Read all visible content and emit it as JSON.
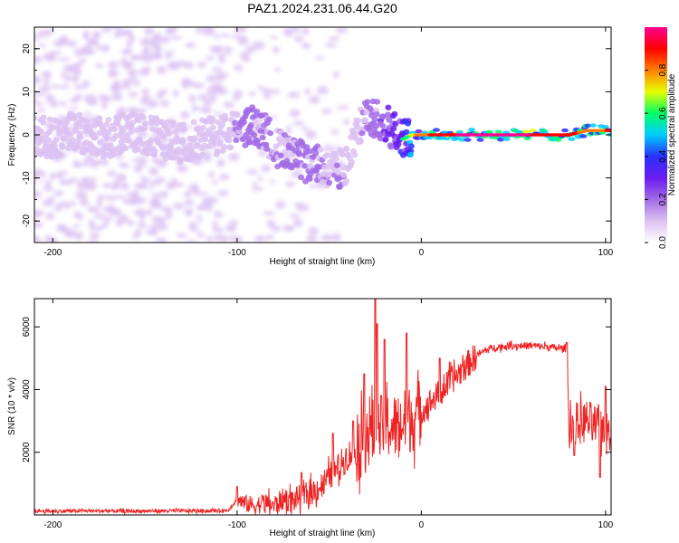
{
  "title": "PAZ1.2024.231.06.44.G20",
  "chart_data": [
    {
      "type": "heatmap",
      "xlabel": "Height of straight line (km)",
      "ylabel": "Frequency (Hz)",
      "xlim": [
        -210,
        103
      ],
      "ylim": [
        -25,
        25
      ],
      "xticks": [
        -200,
        -100,
        0,
        100
      ],
      "yticks": [
        -20,
        -10,
        0,
        10,
        20
      ],
      "colorbar": {
        "label": "Normalized spectral amplitude",
        "range": [
          0,
          1
        ],
        "ticks": [
          "0.0",
          "0.2",
          "0.4",
          "0.6",
          "0.8"
        ],
        "colors": [
          "#ffffff",
          "#dcc2f2",
          "#a26be6",
          "#6a1cf0",
          "#2a30ff",
          "#00ccff",
          "#00ff66",
          "#e5ff00",
          "#ff7f00",
          "#ff0000",
          "#ff0090"
        ]
      },
      "ridge": {
        "x": [
          -210,
          -200,
          -190,
          -180,
          -170,
          -160,
          -150,
          -140,
          -130,
          -120,
          -110,
          -100,
          -95,
          -90,
          -85,
          -80,
          -75,
          -70,
          -65,
          -60,
          -55,
          -50,
          -45,
          -40,
          -37,
          -35,
          -30,
          -28,
          -25,
          -20,
          -15,
          -10,
          -5,
          0,
          5,
          10,
          20,
          40,
          60,
          80,
          90,
          100,
          103
        ],
        "freq": [
          0,
          -1,
          1,
          0,
          -1,
          1,
          0,
          -1,
          -2,
          -1,
          0,
          1,
          2,
          2,
          1,
          -2,
          -4,
          -5,
          -6,
          -7,
          -7,
          -8,
          -8,
          -7,
          -2,
          1,
          3,
          4,
          4,
          3,
          1,
          -1,
          0,
          0,
          0,
          0,
          0,
          0,
          0,
          0,
          1,
          1,
          1
        ],
        "amplitude": [
          0.15,
          0.15,
          0.15,
          0.15,
          0.15,
          0.15,
          0.15,
          0.15,
          0.15,
          0.15,
          0.15,
          0.25,
          0.3,
          0.35,
          0.3,
          0.3,
          0.3,
          0.3,
          0.3,
          0.3,
          0.25,
          0.25,
          0.25,
          0.2,
          0.15,
          0.15,
          0.3,
          0.35,
          0.35,
          0.4,
          0.45,
          0.55,
          0.7,
          0.8,
          0.85,
          0.9,
          0.95,
          0.95,
          0.95,
          0.9,
          0.8,
          0.85,
          0.85
        ]
      }
    },
    {
      "type": "line",
      "xlabel": "Height of straight line (km)",
      "ylabel": "SNR (10 * v/v)",
      "xlim": [
        -210,
        103
      ],
      "ylim": [
        0,
        6900
      ],
      "xticks": [
        -200,
        -100,
        0,
        100
      ],
      "yticks": [
        2000,
        4000,
        6000
      ],
      "series": [
        {
          "color": "#ee2222",
          "x": [
            -210,
            -200,
            -180,
            -160,
            -140,
            -120,
            -105,
            -100,
            -95,
            -90,
            -85,
            -80,
            -75,
            -70,
            -65,
            -60,
            -55,
            -50,
            -45,
            -40,
            -35,
            -30,
            -28,
            -25,
            -20,
            -15,
            -10,
            -5,
            0,
            5,
            10,
            15,
            20,
            25,
            30,
            35,
            40,
            50,
            60,
            70,
            78,
            79,
            80,
            85,
            90,
            95,
            100,
            103
          ],
          "y": [
            130,
            120,
            130,
            120,
            130,
            130,
            140,
            500,
            350,
            300,
            400,
            300,
            500,
            450,
            600,
            700,
            900,
            1200,
            1500,
            1900,
            2100,
            2400,
            2800,
            2500,
            2900,
            2800,
            2900,
            3100,
            3300,
            3600,
            3900,
            4200,
            4500,
            4800,
            5100,
            5250,
            5350,
            5400,
            5400,
            5350,
            5300,
            5300,
            3000,
            2900,
            3000,
            2800,
            2900,
            2600
          ],
          "spikes": [
            {
              "x": -100,
              "y": 900
            },
            {
              "x": -65,
              "y": 1350
            },
            {
              "x": -48,
              "y": 2600
            },
            {
              "x": -37,
              "y": 3000
            },
            {
              "x": -31,
              "y": 4500
            },
            {
              "x": -25,
              "y": 6900
            },
            {
              "x": -24,
              "y": 6100
            },
            {
              "x": -20,
              "y": 5600
            },
            {
              "x": -8,
              "y": 5800
            },
            {
              "x": 10,
              "y": 5000
            },
            {
              "x": 79,
              "y": 5500
            },
            {
              "x": 83,
              "y": 1900
            },
            {
              "x": 97,
              "y": 1200
            },
            {
              "x": 100,
              "y": 4100
            }
          ]
        }
      ]
    }
  ]
}
